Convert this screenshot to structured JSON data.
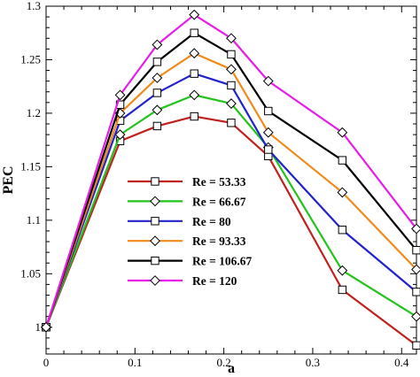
{
  "chart_data": {
    "type": "line",
    "xlabel": "a",
    "ylabel": "PEC",
    "xlim": [
      0,
      0.4167
    ],
    "ylim": [
      0.975,
      1.3
    ],
    "x_ticks": [
      "0",
      "0.1",
      "0.2",
      "0.3",
      "0.4"
    ],
    "y_ticks": [
      "1",
      "1.05",
      "1.1",
      "1.15",
      "1.2",
      "1.25",
      "1.3"
    ],
    "x": [
      0,
      0.0833,
      0.125,
      0.1667,
      0.2083,
      0.25,
      0.3333,
      0.4167
    ],
    "legend_position": "center-left",
    "grid": false,
    "series": [
      {
        "name": "Re =  53.33",
        "color": "#c0201e",
        "marker": "square",
        "values": [
          1.0,
          1.174,
          1.188,
          1.197,
          1.191,
          1.16,
          1.035,
          0.983
        ]
      },
      {
        "name": "Re =  66.67",
        "color": "#22c41b",
        "marker": "diamond",
        "values": [
          1.0,
          1.18,
          1.203,
          1.217,
          1.209,
          1.168,
          1.053,
          1.01
        ]
      },
      {
        "name": "Re =  80",
        "color": "#2222cc",
        "marker": "square",
        "values": [
          1.0,
          1.193,
          1.219,
          1.237,
          1.226,
          1.166,
          1.091,
          1.033
        ]
      },
      {
        "name": "Re =  93.33",
        "color": "#f08a1a",
        "marker": "diamond",
        "values": [
          1.0,
          1.2,
          1.233,
          1.256,
          1.241,
          1.182,
          1.126,
          1.054
        ]
      },
      {
        "name": "Re =  106.67",
        "color": "#000000",
        "marker": "square",
        "values": [
          1.0,
          1.208,
          1.248,
          1.275,
          1.255,
          1.202,
          1.156,
          1.072
        ]
      },
      {
        "name": "Re =  120",
        "color": "#e81ce8",
        "marker": "diamond",
        "values": [
          1.0,
          1.217,
          1.264,
          1.292,
          1.27,
          1.23,
          1.182,
          1.092
        ]
      }
    ]
  }
}
